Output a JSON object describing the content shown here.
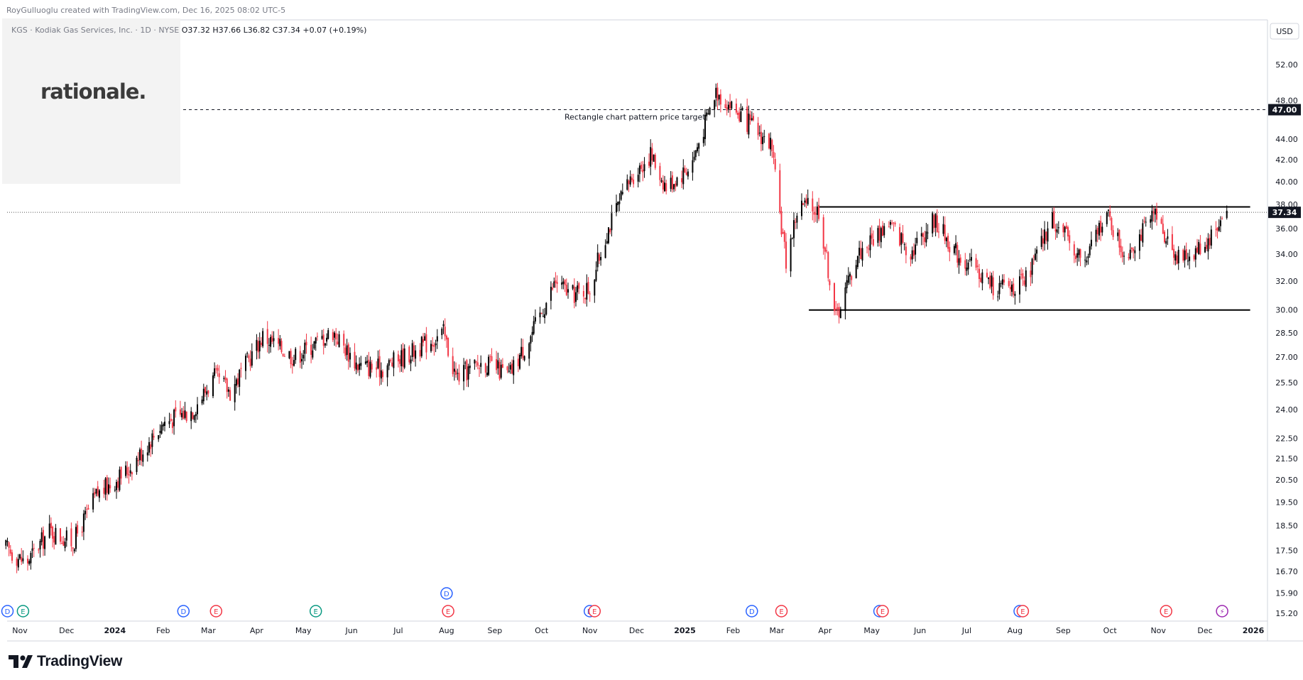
{
  "header": {
    "credit": "RoyGulluoglu created with TradingView.com, Dec 16, 2025 08:02 UTC-5",
    "symbol_line": "KGS · Kodiak Gas Services, Inc. · 1D · NYSE",
    "ohlc": "O37.32 H37.66 L36.82 C37.34 +0.07 (+0.19%)"
  },
  "logo_text": "rationale.",
  "footer": {
    "brand": "TradingView"
  },
  "annotation": "Rectangle chart pattern price target",
  "currency": "USD",
  "colors": {
    "up": "#000000",
    "down": "#f23645",
    "axis_text": "#131722",
    "grid_label": "#787b86"
  },
  "price_labels": {
    "target": "47.00",
    "current": "37.34"
  },
  "chart_data": {
    "type": "candlestick",
    "scale": "log",
    "ylim": [
      15.0,
      54.0
    ],
    "y_ticks": [
      "52.00",
      "48.00",
      "44.00",
      "42.00",
      "40.00",
      "38.00",
      "36.00",
      "34.00",
      "32.00",
      "30.00",
      "28.50",
      "27.00",
      "25.50",
      "24.00",
      "22.50",
      "21.50",
      "20.50",
      "19.50",
      "18.50",
      "17.50",
      "16.70",
      "15.90",
      "15.20"
    ],
    "x_ticks": [
      {
        "label": "Nov",
        "date": "2023-11-01"
      },
      {
        "label": "Dec",
        "date": "2023-12-01"
      },
      {
        "label": "2024",
        "date": "2024-01-01",
        "bold": true
      },
      {
        "label": "Feb",
        "date": "2024-02-01"
      },
      {
        "label": "Mar",
        "date": "2024-03-01"
      },
      {
        "label": "Apr",
        "date": "2024-04-01"
      },
      {
        "label": "May",
        "date": "2024-05-01"
      },
      {
        "label": "Jun",
        "date": "2024-06-01"
      },
      {
        "label": "Jul",
        "date": "2024-07-01"
      },
      {
        "label": "Aug",
        "date": "2024-08-01"
      },
      {
        "label": "Sep",
        "date": "2024-09-01"
      },
      {
        "label": "Oct",
        "date": "2024-10-01"
      },
      {
        "label": "Nov",
        "date": "2024-11-01"
      },
      {
        "label": "Dec",
        "date": "2024-12-01"
      },
      {
        "label": "2025",
        "date": "2025-01-01",
        "bold": true
      },
      {
        "label": "Feb",
        "date": "2025-02-01"
      },
      {
        "label": "Mar",
        "date": "2025-03-01"
      },
      {
        "label": "Apr",
        "date": "2025-04-01"
      },
      {
        "label": "May",
        "date": "2025-05-01"
      },
      {
        "label": "Jun",
        "date": "2025-06-01"
      },
      {
        "label": "Jul",
        "date": "2025-07-01"
      },
      {
        "label": "Aug",
        "date": "2025-08-01"
      },
      {
        "label": "Sep",
        "date": "2025-09-01"
      },
      {
        "label": "Oct",
        "date": "2025-10-01"
      },
      {
        "label": "Nov",
        "date": "2025-11-01"
      },
      {
        "label": "Dec",
        "date": "2025-12-01"
      },
      {
        "label": "2026",
        "date": "2026-01-01",
        "bold": true
      }
    ],
    "price_path": [
      {
        "date": "2023-10-23",
        "close": 17.6
      },
      {
        "date": "2023-11-05",
        "close": 17.0
      },
      {
        "date": "2023-11-20",
        "close": 18.3
      },
      {
        "date": "2023-12-05",
        "close": 17.8
      },
      {
        "date": "2023-12-20",
        "close": 19.8
      },
      {
        "date": "2024-01-10",
        "close": 21.0
      },
      {
        "date": "2024-02-01",
        "close": 23.3
      },
      {
        "date": "2024-02-20",
        "close": 24.0
      },
      {
        "date": "2024-03-05",
        "close": 25.8
      },
      {
        "date": "2024-03-15",
        "close": 25.0
      },
      {
        "date": "2024-04-05",
        "close": 28.3
      },
      {
        "date": "2024-04-25",
        "close": 27.0
      },
      {
        "date": "2024-05-20",
        "close": 28.6
      },
      {
        "date": "2024-06-05",
        "close": 26.5
      },
      {
        "date": "2024-06-20",
        "close": 26.3
      },
      {
        "date": "2024-07-15",
        "close": 27.6
      },
      {
        "date": "2024-07-30",
        "close": 28.5
      },
      {
        "date": "2024-08-07",
        "close": 25.8
      },
      {
        "date": "2024-08-25",
        "close": 26.7
      },
      {
        "date": "2024-09-10",
        "close": 25.9
      },
      {
        "date": "2024-09-25",
        "close": 28.5
      },
      {
        "date": "2024-10-10",
        "close": 32.0
      },
      {
        "date": "2024-10-20",
        "close": 31.0
      },
      {
        "date": "2024-11-01",
        "close": 31.5
      },
      {
        "date": "2024-11-12",
        "close": 35.8
      },
      {
        "date": "2024-11-28",
        "close": 40.5
      },
      {
        "date": "2024-12-10",
        "close": 42.5
      },
      {
        "date": "2024-12-20",
        "close": 39.5
      },
      {
        "date": "2025-01-05",
        "close": 41.5
      },
      {
        "date": "2025-01-21",
        "close": 49.0
      },
      {
        "date": "2025-02-05",
        "close": 46.5
      },
      {
        "date": "2025-02-25",
        "close": 43.5
      },
      {
        "date": "2025-03-07",
        "close": 33.5
      },
      {
        "date": "2025-03-15",
        "close": 38.0
      },
      {
        "date": "2025-03-28",
        "close": 37.5
      },
      {
        "date": "2025-04-08",
        "close": 29.5
      },
      {
        "date": "2025-04-22",
        "close": 34.0
      },
      {
        "date": "2025-05-12",
        "close": 36.5
      },
      {
        "date": "2025-05-26",
        "close": 34.2
      },
      {
        "date": "2025-06-10",
        "close": 36.8
      },
      {
        "date": "2025-06-25",
        "close": 34.0
      },
      {
        "date": "2025-07-20",
        "close": 31.5
      },
      {
        "date": "2025-08-07",
        "close": 31.8
      },
      {
        "date": "2025-08-25",
        "close": 36.8
      },
      {
        "date": "2025-09-15",
        "close": 33.3
      },
      {
        "date": "2025-09-28",
        "close": 37.5
      },
      {
        "date": "2025-10-10",
        "close": 34.0
      },
      {
        "date": "2025-10-30",
        "close": 37.0
      },
      {
        "date": "2025-11-15",
        "close": 33.5
      },
      {
        "date": "2025-12-01",
        "close": 34.8
      },
      {
        "date": "2025-12-15",
        "close": 37.34
      }
    ],
    "rectangle": {
      "top": 37.8,
      "bottom": 30.0,
      "start": "2025-03-28",
      "end": "2025-12-30"
    },
    "target_line": 47.0,
    "current_line": 37.34,
    "events": [
      {
        "type": "D",
        "date": "2023-10-24"
      },
      {
        "type": "E",
        "date": "2023-11-03",
        "color": "green"
      },
      {
        "type": "D",
        "date": "2024-02-14"
      },
      {
        "type": "E",
        "date": "2024-03-06"
      },
      {
        "type": "E",
        "date": "2024-05-09",
        "color": "green"
      },
      {
        "type": "D",
        "date": "2024-08-01",
        "raised": true
      },
      {
        "type": "E",
        "date": "2024-08-02"
      },
      {
        "type": "D",
        "date": "2024-11-01"
      },
      {
        "type": "E",
        "date": "2024-11-04"
      },
      {
        "type": "D",
        "date": "2025-02-13"
      },
      {
        "type": "E",
        "date": "2025-03-04"
      },
      {
        "type": "D",
        "date": "2025-05-06"
      },
      {
        "type": "E",
        "date": "2025-05-08"
      },
      {
        "type": "D",
        "date": "2025-08-04"
      },
      {
        "type": "E",
        "date": "2025-08-06"
      },
      {
        "type": "E",
        "date": "2025-11-06"
      },
      {
        "type": "S",
        "date": "2025-12-12"
      }
    ]
  }
}
